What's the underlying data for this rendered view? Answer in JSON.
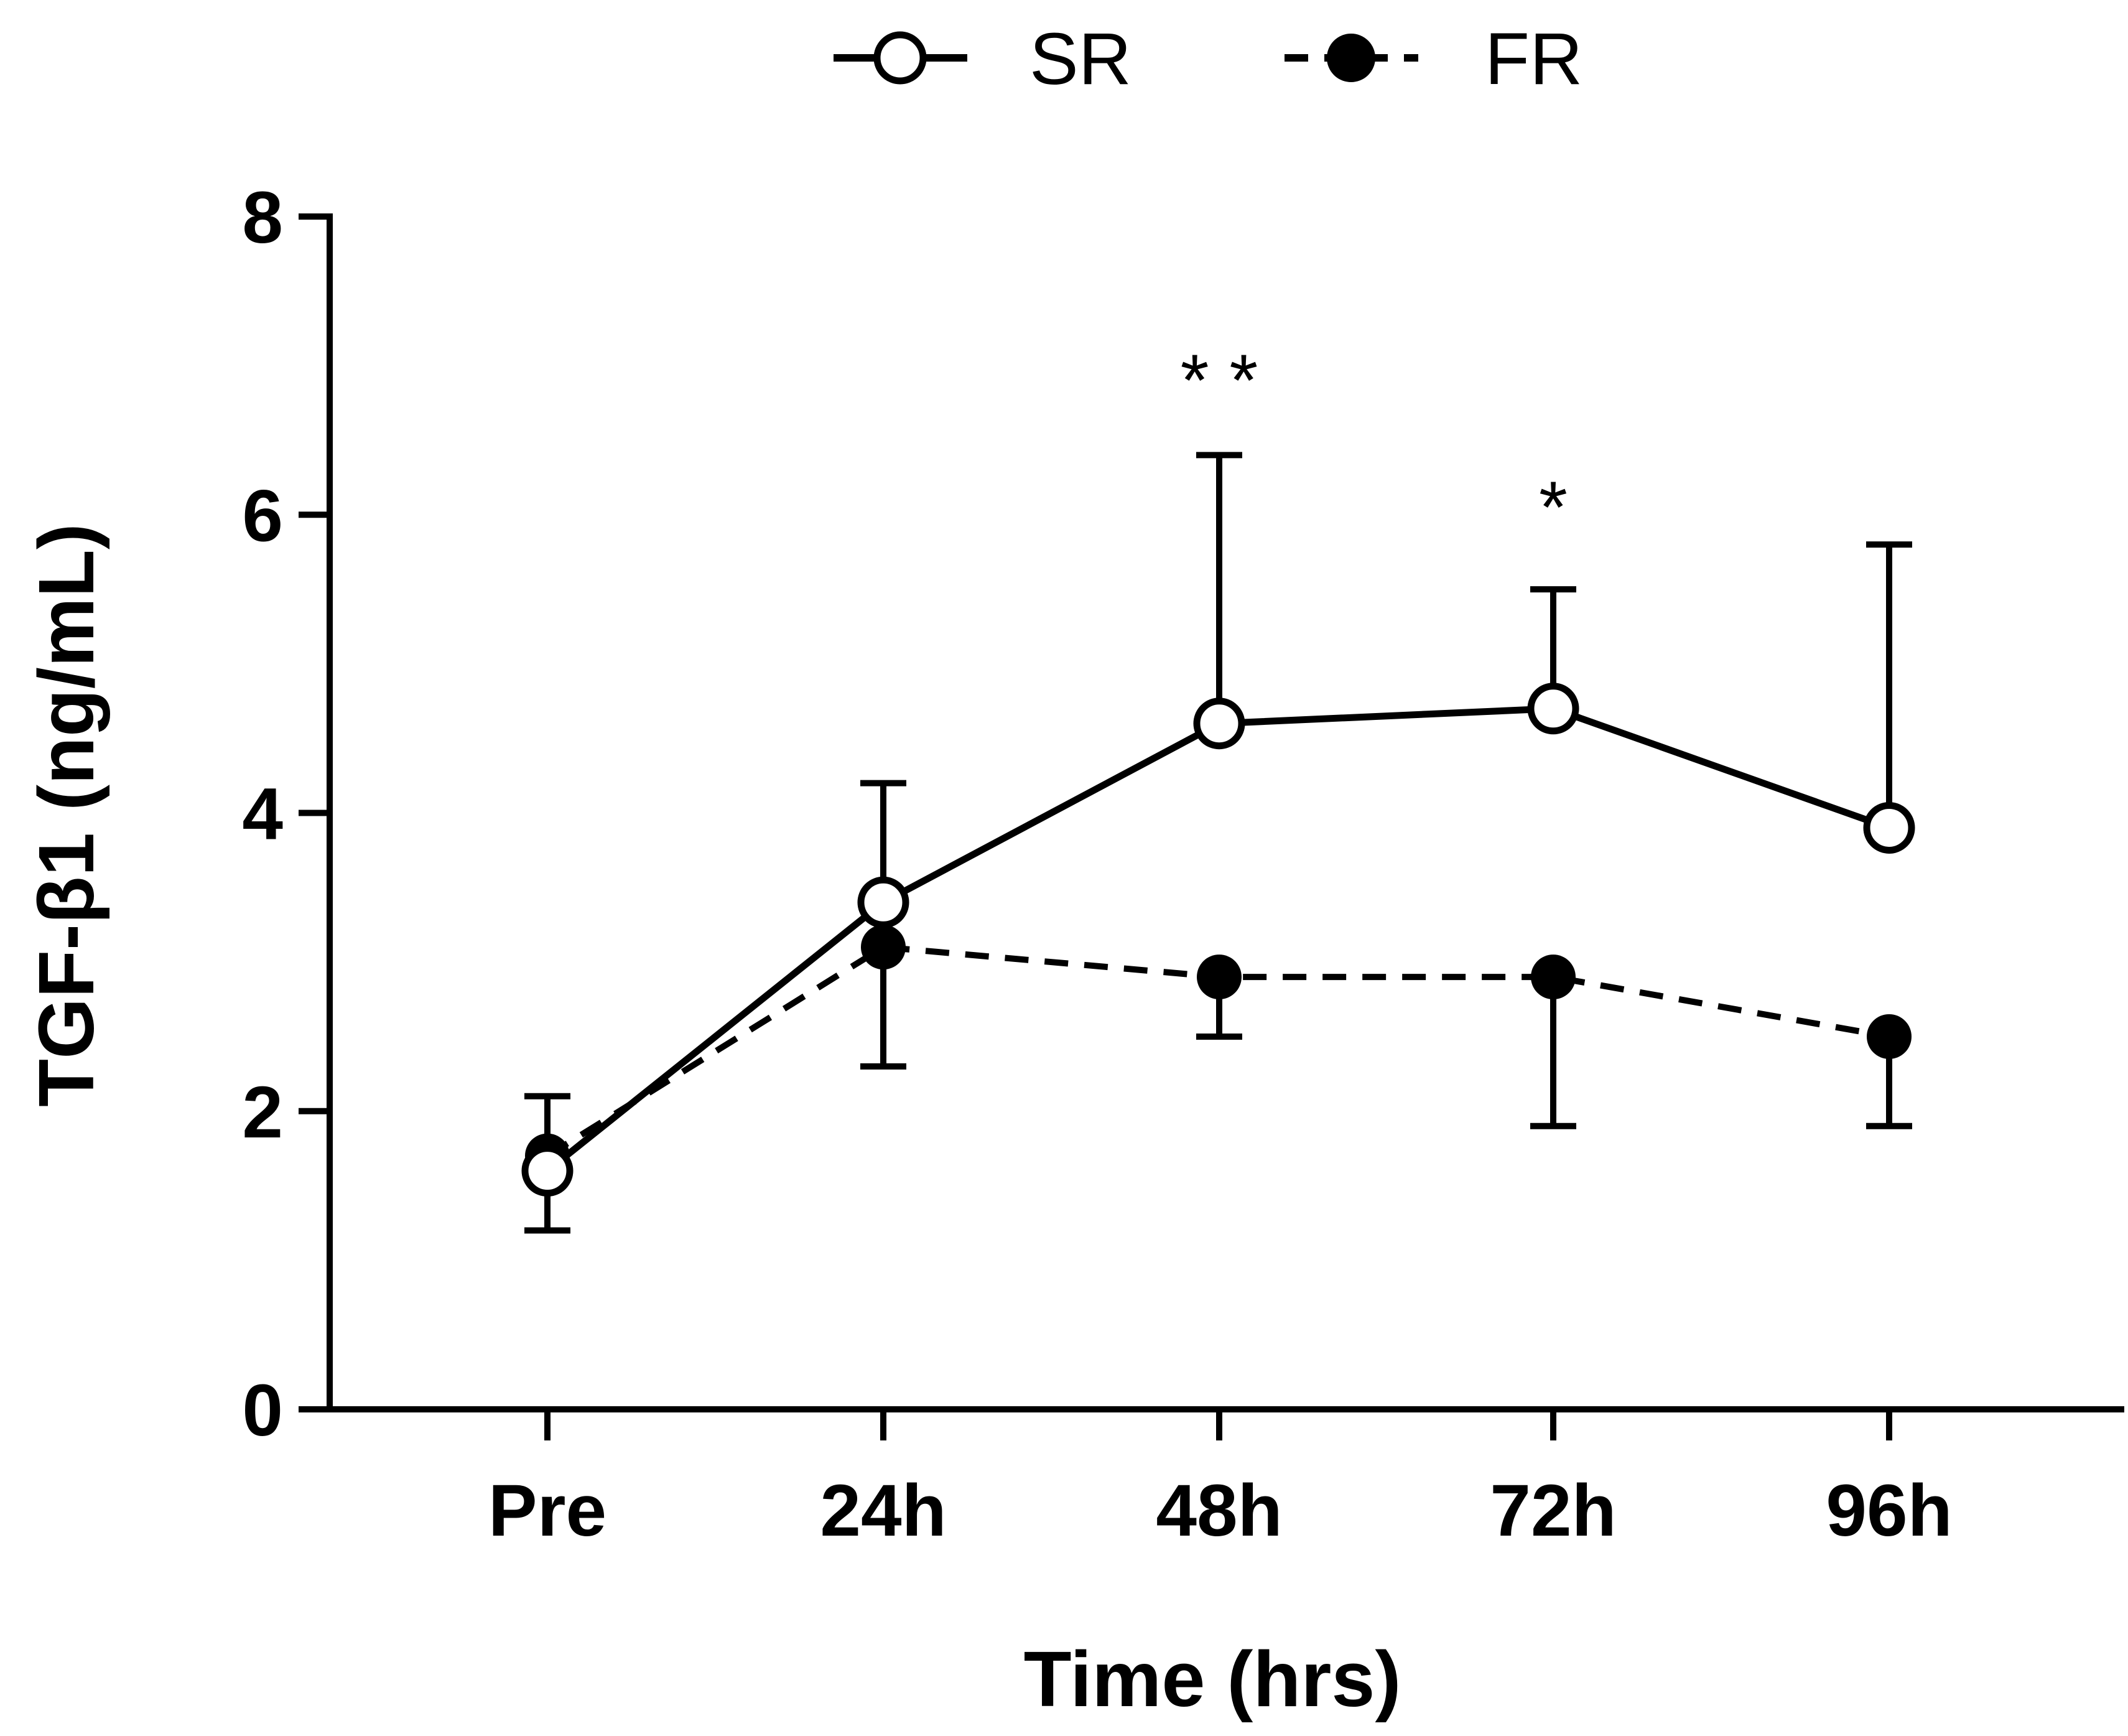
{
  "chart_data": {
    "type": "line",
    "title": "",
    "xlabel": "Time (hrs)",
    "ylabel": "TGF-β1 (ng/mL)",
    "categories": [
      "Pre",
      "24h",
      "48h",
      "72h",
      "96h"
    ],
    "ylim": [
      0,
      8
    ],
    "yticks": [
      0,
      2,
      4,
      6,
      8
    ],
    "series": [
      {
        "name": "SR",
        "marker": "open-circle",
        "line": "solid",
        "values": [
          1.6,
          3.4,
          4.6,
          4.7,
          3.9
        ],
        "error_upper": [
          2.1,
          4.2,
          6.4,
          5.5,
          5.8
        ],
        "error_lower": [
          1.2,
          null,
          null,
          null,
          null
        ]
      },
      {
        "name": "FR",
        "marker": "filled-circle",
        "line": "dashed",
        "values": [
          1.7,
          3.1,
          2.9,
          2.9,
          2.5
        ],
        "error_upper": [
          null,
          null,
          null,
          null,
          null
        ],
        "error_lower": [
          null,
          2.3,
          2.5,
          1.9,
          1.9
        ]
      }
    ],
    "annotations": [
      {
        "category": "48h",
        "text": "* *",
        "y": 6.9
      },
      {
        "category": "72h",
        "text": "*",
        "y": 6.05
      }
    ],
    "legend": "top-center",
    "grid": false,
    "colors": {
      "line": "#000000",
      "background": "#ffffff"
    }
  }
}
